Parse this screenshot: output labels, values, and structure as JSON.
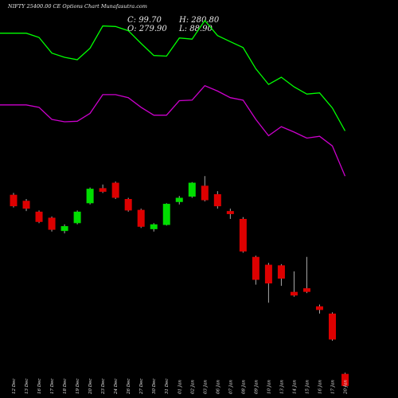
{
  "title": "NIFTY 25400.00 CE Options Chart Munafasutra.com",
  "ohlc": {
    "close_label": "C: 99.70",
    "high_label": "H: 280.80",
    "open_label": "O: 279.90",
    "low_label": "L: 88.90"
  },
  "colors": {
    "background": "#000000",
    "up": "#00dd00",
    "down": "#dd0000",
    "wick": "#aaaaaa",
    "upper_band": "#00ff00",
    "lower_band": "#cc00cc"
  },
  "chart_data": {
    "type": "candlestick",
    "title": "NIFTY 25400.00 CE Options Chart Munafasutra.com",
    "x": [
      "12 Dec",
      "13 Dec",
      "16 Dec",
      "17 Dec",
      "18 Dec",
      "19 Dec",
      "20 Dec",
      "23 Dec",
      "24 Dec",
      "26 Dec",
      "27 Dec",
      "30 Dec",
      "31 Dec",
      "01 Jan",
      "02 Jan",
      "03 Jan",
      "06 Jan",
      "07 Jan",
      "08 Jan",
      "09 Jan",
      "10 Jan",
      "13 Jan",
      "14 Jan",
      "15 Jan",
      "16 Jan",
      "17 Jan",
      "20 Jan"
    ],
    "candles": [
      {
        "o": 277,
        "c": 258,
        "h": 280,
        "l": 256
      },
      {
        "o": 267,
        "c": 254,
        "h": 270,
        "l": 250
      },
      {
        "o": 249,
        "c": 232,
        "h": 251,
        "l": 230
      },
      {
        "o": 239,
        "c": 219,
        "h": 241,
        "l": 216
      },
      {
        "o": 217,
        "c": 225,
        "h": 228,
        "l": 213
      },
      {
        "o": 230,
        "c": 249,
        "h": 251,
        "l": 228
      },
      {
        "o": 263,
        "c": 287,
        "h": 289,
        "l": 261
      },
      {
        "o": 288,
        "c": 282,
        "h": 294,
        "l": 280
      },
      {
        "o": 297,
        "c": 272,
        "h": 299,
        "l": 270
      },
      {
        "o": 270,
        "c": 251,
        "h": 272,
        "l": 249
      },
      {
        "o": 252,
        "c": 224,
        "h": 254,
        "l": 222
      },
      {
        "o": 220,
        "c": 228,
        "h": 230,
        "l": 216
      },
      {
        "o": 227,
        "c": 262,
        "h": 263,
        "l": 226
      },
      {
        "o": 265,
        "c": 272,
        "h": 275,
        "l": 261
      },
      {
        "o": 274,
        "c": 297,
        "h": 298,
        "l": 272
      },
      {
        "o": 292,
        "c": 268,
        "h": 308,
        "l": 266
      },
      {
        "o": 278,
        "c": 258,
        "h": 283,
        "l": 254
      },
      {
        "o": 250,
        "c": 245,
        "h": 254,
        "l": 237
      },
      {
        "o": 237,
        "c": 183,
        "h": 240,
        "l": 181
      },
      {
        "o": 174,
        "c": 136,
        "h": 176,
        "l": 128
      },
      {
        "o": 161,
        "c": 130,
        "h": 164,
        "l": 98
      },
      {
        "o": 160,
        "c": 138,
        "h": 162,
        "l": 126
      },
      {
        "o": 116,
        "c": 110,
        "h": 150,
        "l": 108
      },
      {
        "o": 122,
        "c": 116,
        "h": 174,
        "l": 114
      },
      {
        "o": 92,
        "c": 86,
        "h": 95,
        "l": 80
      },
      {
        "o": 80,
        "c": 37,
        "h": 82,
        "l": 35
      },
      {
        "o": -20,
        "c": -40,
        "h": -18,
        "l": -42
      }
    ],
    "series": [
      {
        "values": [
          545,
          545,
          538,
          512,
          505,
          501,
          520,
          557,
          556,
          549,
          528,
          508,
          507,
          537,
          535,
          566,
          541,
          531,
          521,
          486,
          460,
          472,
          456,
          444,
          446,
          421,
          383
        ]
      },
      {
        "values": [
          426,
          426,
          422,
          402,
          398,
          399,
          412,
          443,
          443,
          438,
          422,
          409,
          409,
          433,
          434,
          458,
          449,
          438,
          434,
          402,
          375,
          390,
          381,
          371,
          374,
          358,
          308
        ]
      }
    ],
    "ylim": [
      -60,
      600
    ],
    "grid": false,
    "legend": "none"
  }
}
